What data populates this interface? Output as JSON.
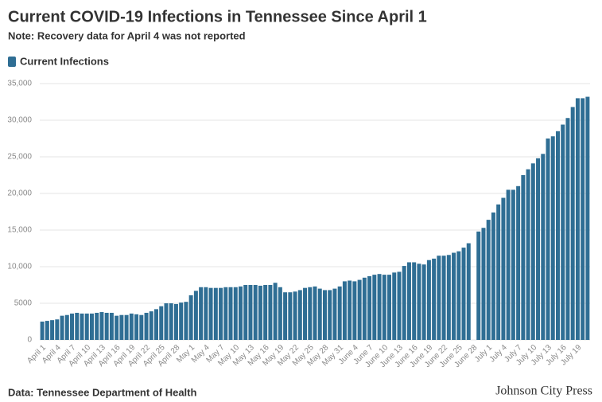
{
  "chart_data": {
    "type": "bar",
    "title": "Current COVID-19 Infections in Tennessee Since April 1",
    "subtitle": "Note: Recovery data for April 4 was not reported",
    "source": "Data: Tennessee Department of Health",
    "logo": "Johnson City Press",
    "grid": true,
    "ylim": [
      0,
      35000
    ],
    "yticks": [
      0,
      5000,
      {
        "value": 10000,
        "label": "10,000"
      },
      {
        "value": 15000,
        "label": "15,000"
      },
      {
        "value": 20000,
        "label": "20,000"
      },
      {
        "value": 25000,
        "label": "25,000"
      },
      {
        "value": 30000,
        "label": "30,000"
      },
      {
        "value": 35000,
        "label": "35,000"
      }
    ],
    "categories": [
      "April 1",
      null,
      null,
      "April 4",
      null,
      null,
      "April 7",
      null,
      null,
      "April 10",
      null,
      null,
      "April 13",
      null,
      null,
      "April 16",
      null,
      null,
      "April 19",
      null,
      null,
      "April 22",
      null,
      null,
      "April 25",
      null,
      null,
      "April 28",
      null,
      null,
      "May 1",
      null,
      null,
      "May 4",
      null,
      null,
      "May 7",
      null,
      null,
      "May 10",
      null,
      null,
      "May 13",
      null,
      null,
      "May 16",
      null,
      null,
      "May 19",
      null,
      null,
      "May 22",
      null,
      null,
      "May 25",
      null,
      null,
      "May 28",
      null,
      null,
      "May 31",
      null,
      null,
      "June 4",
      null,
      null,
      "June 7",
      null,
      null,
      "June 10",
      null,
      null,
      "June 13",
      null,
      null,
      "June 16",
      null,
      null,
      "June 19",
      null,
      null,
      "June 22",
      null,
      null,
      "June 25",
      null,
      null,
      "June 28",
      null,
      null,
      "July 1",
      null,
      null,
      "July 4",
      null,
      null,
      "July 7",
      null,
      null,
      "July 10",
      null,
      null,
      "July 13",
      null,
      null,
      "July 16",
      null,
      null,
      "July 19",
      null,
      null
    ],
    "series": [
      {
        "name": "Current Infections",
        "color": "#2f6e94",
        "values": [
          2500,
          2600,
          2700,
          2800,
          3300,
          3400,
          3600,
          3700,
          3600,
          3600,
          3600,
          3700,
          3800,
          3700,
          3700,
          3300,
          3400,
          3400,
          3600,
          3500,
          3400,
          3700,
          3900,
          4200,
          4600,
          5000,
          5000,
          4900,
          5100,
          5200,
          6100,
          6700,
          7200,
          7200,
          7100,
          7100,
          7100,
          7200,
          7200,
          7200,
          7300,
          7500,
          7500,
          7500,
          7400,
          7500,
          7500,
          7800,
          7200,
          6500,
          6500,
          6600,
          6800,
          7100,
          7200,
          7300,
          7000,
          6800,
          6800,
          7000,
          7300,
          8000,
          8100,
          8000,
          8200,
          8500,
          8700,
          8900,
          9000,
          8900,
          8900,
          9200,
          9300,
          10100,
          10600,
          10600,
          10400,
          10300,
          10900,
          11100,
          11500,
          11500,
          11600,
          11900,
          12100,
          12600,
          13200,
          null,
          14800,
          15300,
          16400,
          17400,
          18500,
          19400,
          20500,
          20500,
          21000,
          22500,
          23300,
          24100,
          24800,
          25400,
          27500,
          27800,
          28500,
          29400,
          30300,
          31800,
          33000,
          33000,
          33200
        ]
      }
    ]
  }
}
